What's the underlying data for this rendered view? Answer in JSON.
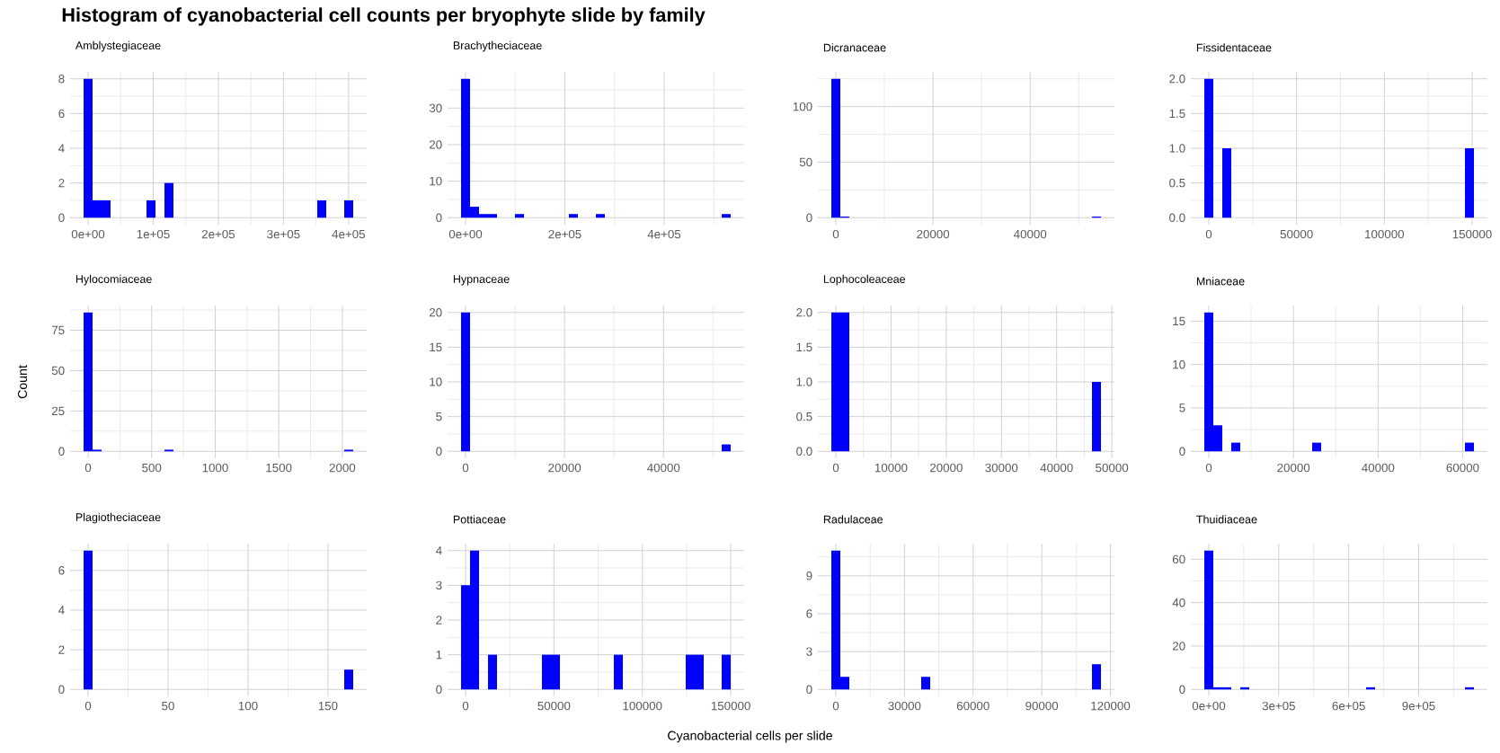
{
  "chart_data": [
    {
      "type": "histogram",
      "title": "Amblystegiaceae",
      "annotations": [
        "Histogram of cyanobacterial cell counts per bryophyte slide by family"
      ],
      "color": "#0000ff",
      "grid": true,
      "bins": [
        -6900,
        6900,
        20700,
        34500,
        48300,
        62100,
        75900,
        89700,
        103500,
        117300,
        131100,
        144900,
        158700,
        172500,
        186300,
        200100,
        213900,
        227700,
        241500,
        255300,
        269100,
        282900,
        296700,
        310500,
        324300,
        338100,
        351900,
        365700,
        379500,
        393300,
        407100
      ],
      "values": [
        8,
        1,
        1,
        0,
        0,
        0,
        0,
        1,
        0,
        2,
        0,
        0,
        0,
        0,
        0,
        0,
        0,
        0,
        0,
        0,
        0,
        0,
        0,
        0,
        0,
        0,
        1,
        0,
        0,
        1
      ],
      "xlim": [
        -27600,
        427800
      ],
      "ylim": [
        -0.4,
        8.4
      ],
      "xticks": [
        {
          "value": 0,
          "label": "0e+00"
        },
        {
          "value": 100000,
          "label": "1e+05"
        },
        {
          "value": 200000,
          "label": "2e+05"
        },
        {
          "value": 300000,
          "label": "3e+05"
        },
        {
          "value": 400000,
          "label": "4e+05"
        }
      ],
      "yticks": [
        0,
        2,
        4,
        6,
        8
      ]
    },
    {
      "type": "histogram",
      "title": "Brachytheciaceae",
      "color": "#0000ff",
      "grid": true,
      "bins": [
        -9050,
        9050,
        27150,
        45250,
        63350,
        81450,
        99550,
        117650,
        135750,
        153850,
        171950,
        190050,
        208150,
        226250,
        244350,
        262450,
        280550,
        298650,
        316750,
        334850,
        352950,
        371050,
        389150,
        407250,
        425350,
        443450,
        461550,
        479650,
        497750,
        515850,
        533950
      ],
      "values": [
        38,
        3,
        1,
        1,
        0,
        0,
        1,
        0,
        0,
        0,
        0,
        0,
        1,
        0,
        0,
        1,
        0,
        0,
        0,
        0,
        0,
        0,
        0,
        0,
        0,
        0,
        0,
        0,
        0,
        1
      ],
      "xlim": [
        -36200,
        561100
      ],
      "ylim": [
        -1.9,
        39.9
      ],
      "xticks": [
        {
          "value": 0,
          "label": "0e+00"
        },
        {
          "value": 200000,
          "label": "2e+05"
        },
        {
          "value": 400000,
          "label": "4e+05"
        }
      ],
      "yticks": [
        0,
        10,
        20,
        30
      ]
    },
    {
      "type": "histogram",
      "title": "Dicranaceae",
      "color": "#0000ff",
      "grid": true,
      "bins": [
        -925,
        925,
        2775,
        4625,
        6475,
        8325,
        10175,
        12025,
        13875,
        15725,
        17575,
        19425,
        21275,
        23125,
        24975,
        26825,
        28675,
        30525,
        32375,
        34225,
        36075,
        37925,
        39775,
        41625,
        43475,
        45325,
        47175,
        49025,
        50875,
        52725,
        54575
      ],
      "values": [
        125,
        1,
        0,
        0,
        0,
        0,
        0,
        0,
        0,
        0,
        0,
        0,
        0,
        0,
        0,
        0,
        0,
        0,
        0,
        0,
        0,
        0,
        0,
        0,
        0,
        0,
        0,
        0,
        0,
        1
      ],
      "xlim": [
        -3700,
        57350
      ],
      "ylim": [
        -6.25,
        131.25
      ],
      "xticks": [
        0,
        20000,
        40000
      ],
      "yticks": [
        0,
        50,
        100
      ]
    },
    {
      "type": "histogram",
      "title": "Fissidentaceae",
      "color": "#0000ff",
      "grid": true,
      "bins": [
        -2560,
        2560,
        7680,
        12800,
        17920,
        23040,
        28160,
        33280,
        38400,
        43520,
        48640,
        53760,
        58880,
        64000,
        69120,
        74240,
        79360,
        84480,
        89600,
        94720,
        99840,
        104960,
        110080,
        115200,
        120320,
        125440,
        130560,
        135680,
        140800,
        145920,
        151040
      ],
      "values": [
        2,
        0,
        1,
        0,
        0,
        0,
        0,
        0,
        0,
        0,
        0,
        0,
        0,
        0,
        0,
        0,
        0,
        0,
        0,
        0,
        0,
        0,
        0,
        0,
        0,
        0,
        0,
        0,
        0,
        1
      ],
      "xlim": [
        -10240,
        158720
      ],
      "ylim": [
        -0.1,
        2.1
      ],
      "xticks": [
        0,
        50000,
        100000,
        150000
      ],
      "yticks": [
        {
          "value": 0,
          "label": "0.0"
        },
        {
          "value": 0.5,
          "label": "0.5"
        },
        {
          "value": 1,
          "label": "1.0"
        },
        {
          "value": 1.5,
          "label": "1.5"
        },
        {
          "value": 2,
          "label": "2.0"
        }
      ]
    },
    {
      "type": "histogram",
      "title": "Hylocomiaceae",
      "ylabel": "Count",
      "color": "#0000ff",
      "grid": true,
      "bins": [
        -35.35,
        35.35,
        106.05,
        176.75,
        247.45,
        318.15,
        388.85,
        459.55,
        530.25,
        600.95,
        671.65,
        742.35,
        813.05,
        883.75,
        954.45,
        1025.15,
        1095.85,
        1166.55,
        1237.25,
        1307.95,
        1378.65,
        1449.35,
        1520.05,
        1590.75,
        1661.45,
        1732.15,
        1802.85,
        1873.55,
        1944.25,
        2014.95,
        2085.65
      ],
      "values": [
        86,
        1,
        0,
        0,
        0,
        0,
        0,
        0,
        0,
        1,
        0,
        0,
        0,
        0,
        0,
        0,
        0,
        0,
        0,
        0,
        0,
        0,
        0,
        0,
        0,
        0,
        0,
        0,
        0,
        1
      ],
      "xlim": [
        -141.4,
        2191.7
      ],
      "ylim": [
        -4.3,
        90.3
      ],
      "xticks": [
        0,
        500,
        1000,
        1500,
        2000
      ],
      "yticks": [
        0,
        25,
        50,
        75
      ]
    },
    {
      "type": "histogram",
      "title": "Hypnaceae",
      "color": "#0000ff",
      "grid": true,
      "bins": [
        -908,
        908,
        2724,
        4540,
        6356,
        8172,
        9988,
        11804,
        13620,
        15436,
        17252,
        19068,
        20884,
        22700,
        24516,
        26332,
        28148,
        29964,
        31780,
        33596,
        35412,
        37228,
        39044,
        40860,
        42676,
        44492,
        46308,
        48124,
        49940,
        51756,
        53572
      ],
      "values": [
        20,
        0,
        0,
        0,
        0,
        0,
        0,
        0,
        0,
        0,
        0,
        0,
        0,
        0,
        0,
        0,
        0,
        0,
        0,
        0,
        0,
        0,
        0,
        0,
        0,
        0,
        0,
        0,
        0,
        1
      ],
      "xlim": [
        -3632,
        56296
      ],
      "ylim": [
        -1,
        21
      ],
      "xticks": [
        0,
        20000,
        40000
      ],
      "yticks": [
        0,
        5,
        10,
        15,
        20
      ]
    },
    {
      "type": "histogram",
      "title": "Lophocoleaceae",
      "color": "#0000ff",
      "grid": true,
      "bins": [
        -814,
        814,
        2442,
        4070,
        5698,
        7326,
        8954,
        10582,
        12210,
        13838,
        15466,
        17094,
        18722,
        20350,
        21978,
        23606,
        25234,
        26862,
        28490,
        30118,
        31746,
        33374,
        35002,
        36630,
        38258,
        39886,
        41514,
        43142,
        44770,
        46398,
        48026
      ],
      "values": [
        2,
        2,
        0,
        0,
        0,
        0,
        0,
        0,
        0,
        0,
        0,
        0,
        0,
        0,
        0,
        0,
        0,
        0,
        0,
        0,
        0,
        0,
        0,
        0,
        0,
        0,
        0,
        0,
        0,
        1
      ],
      "xlim": [
        -3256,
        50468
      ],
      "ylim": [
        -0.1,
        2.1
      ],
      "xticks": [
        0,
        10000,
        20000,
        30000,
        40000,
        50000
      ],
      "yticks": [
        {
          "value": 0,
          "label": "0.0"
        },
        {
          "value": 0.5,
          "label": "0.5"
        },
        {
          "value": 1,
          "label": "1.0"
        },
        {
          "value": 1.5,
          "label": "1.5"
        },
        {
          "value": 2,
          "label": "2.0"
        }
      ]
    },
    {
      "type": "histogram",
      "title": "Mniaceae",
      "color": "#0000ff",
      "grid": true,
      "bins": [
        -1062,
        1062,
        3186,
        5310,
        7434,
        9558,
        11682,
        13806,
        15930,
        18054,
        20178,
        22302,
        24426,
        26550,
        28674,
        30798,
        32922,
        35046,
        37170,
        39294,
        41418,
        43542,
        45666,
        47790,
        49914,
        52038,
        54162,
        56286,
        58410,
        60534,
        62658
      ],
      "values": [
        16,
        3,
        0,
        1,
        0,
        0,
        0,
        0,
        0,
        0,
        0,
        0,
        1,
        0,
        0,
        0,
        0,
        0,
        0,
        0,
        0,
        0,
        0,
        0,
        0,
        0,
        0,
        0,
        0,
        1
      ],
      "xlim": [
        -4248,
        65844
      ],
      "ylim": [
        -0.8,
        16.8
      ],
      "xticks": [
        0,
        20000,
        40000,
        60000
      ],
      "yticks": [
        0,
        5,
        10,
        15
      ]
    },
    {
      "type": "histogram",
      "title": "Plagiotheciaceae",
      "color": "#0000ff",
      "grid": true,
      "bins": [
        -2.81,
        2.81,
        8.43,
        14.05,
        19.67,
        25.29,
        30.91,
        36.53,
        42.15,
        47.77,
        53.39,
        59.01,
        64.63,
        70.25,
        75.87,
        81.49,
        87.11,
        92.73,
        98.35,
        103.97,
        109.59,
        115.21,
        120.83,
        126.45,
        132.07,
        137.69,
        143.31,
        148.93,
        154.55,
        160.17,
        165.79
      ],
      "values": [
        7,
        0,
        0,
        0,
        0,
        0,
        0,
        0,
        0,
        0,
        0,
        0,
        0,
        0,
        0,
        0,
        0,
        0,
        0,
        0,
        0,
        0,
        0,
        0,
        0,
        0,
        0,
        0,
        0,
        1
      ],
      "xlim": [
        -11.24,
        174.22
      ],
      "ylim": [
        -0.35,
        7.35
      ],
      "xticks": [
        0,
        50,
        100,
        150
      ],
      "yticks": [
        0,
        2,
        4,
        6
      ]
    },
    {
      "type": "histogram",
      "title": "Pottiaceae",
      "xlabel": "Cyanobacterial cells per slide",
      "color": "#0000ff",
      "grid": true,
      "bins": [
        -2541.5,
        2541.5,
        7624.5,
        12707.5,
        17790.5,
        22873.5,
        27956.5,
        33039.5,
        38122.5,
        43205.5,
        48288.5,
        53371.5,
        58454.5,
        63537.5,
        68620.5,
        73703.5,
        78786.5,
        83869.5,
        88952.5,
        94035.5,
        99118.5,
        104201.5,
        109284.5,
        114367.5,
        119450.5,
        124533.5,
        129616.5,
        134699.5,
        139782.5,
        144865.5,
        149948.5
      ],
      "values": [
        3,
        4,
        0,
        1,
        0,
        0,
        0,
        0,
        0,
        1,
        1,
        0,
        0,
        0,
        0,
        0,
        0,
        1,
        0,
        0,
        0,
        0,
        0,
        0,
        0,
        1,
        1,
        0,
        0,
        1
      ],
      "xlim": [
        -10166,
        157573
      ],
      "ylim": [
        -0.2,
        4.2
      ],
      "xticks": [
        0,
        50000,
        100000,
        150000
      ],
      "yticks": [
        0,
        1,
        2,
        3,
        4
      ]
    },
    {
      "type": "histogram",
      "title": "Radulaceae",
      "color": "#0000ff",
      "grid": true,
      "bins": [
        -1964,
        1964,
        5892,
        9820,
        13748,
        17676,
        21604,
        25532,
        29460,
        33388,
        37316,
        41244,
        45172,
        49100,
        53028,
        56956,
        60884,
        64812,
        68740,
        72668,
        76596,
        80524,
        84452,
        88380,
        92308,
        96236,
        100164,
        104092,
        108020,
        111948,
        115876
      ],
      "values": [
        11,
        1,
        0,
        0,
        0,
        0,
        0,
        0,
        0,
        0,
        1,
        0,
        0,
        0,
        0,
        0,
        0,
        0,
        0,
        0,
        0,
        0,
        0,
        0,
        0,
        0,
        0,
        0,
        0,
        2
      ],
      "xlim": [
        -7856,
        121768
      ],
      "ylim": [
        -0.55,
        11.55
      ],
      "xticks": [
        0,
        30000,
        60000,
        90000,
        120000
      ],
      "yticks": [
        0,
        3,
        6,
        9
      ]
    },
    {
      "type": "histogram",
      "title": "Thuidiaceae",
      "color": "#0000ff",
      "grid": true,
      "bins": [
        -19275,
        19275,
        57825,
        96375,
        134925,
        173475,
        212025,
        250575,
        289125,
        327675,
        366225,
        404775,
        443325,
        481875,
        520425,
        558975,
        597525,
        636075,
        674625,
        713175,
        751725,
        790275,
        828825,
        867375,
        905925,
        944475,
        983025,
        1021575,
        1060125,
        1098675,
        1137225
      ],
      "values": [
        64,
        1,
        1,
        0,
        1,
        0,
        0,
        0,
        0,
        0,
        0,
        0,
        0,
        0,
        0,
        0,
        0,
        0,
        1,
        0,
        0,
        0,
        0,
        0,
        0,
        0,
        0,
        0,
        0,
        1
      ],
      "xlim": [
        -77100,
        1195050
      ],
      "ylim": [
        -3.2,
        67.2
      ],
      "xticks": [
        {
          "value": 0,
          "label": "0e+00"
        },
        {
          "value": 300000,
          "label": "3e+05"
        },
        {
          "value": 600000,
          "label": "6e+05"
        },
        {
          "value": 900000,
          "label": "9e+05"
        }
      ],
      "yticks": [
        0,
        20,
        40,
        60
      ]
    }
  ]
}
